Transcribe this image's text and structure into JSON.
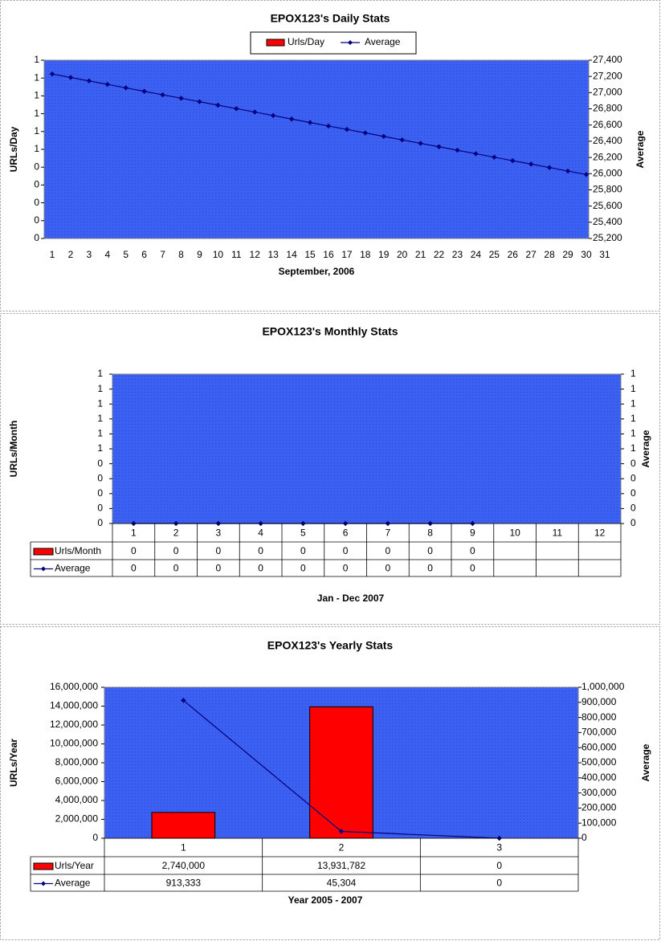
{
  "chart_data": [
    {
      "type": "combo",
      "title": "EPOX123's Daily Stats",
      "x_label": "September, 2006",
      "y_label": "URLs/Day",
      "y2_label": "Average",
      "categories": [
        "1",
        "2",
        "3",
        "4",
        "5",
        "6",
        "7",
        "8",
        "9",
        "10",
        "11",
        "12",
        "13",
        "14",
        "15",
        "16",
        "17",
        "18",
        "19",
        "20",
        "21",
        "22",
        "23",
        "24",
        "25",
        "26",
        "27",
        "28",
        "29",
        "30",
        "31"
      ],
      "series": [
        {
          "name": "Urls/Day",
          "type": "bar",
          "color": "#ff0000",
          "axis": "y",
          "values": [
            0,
            0,
            0,
            0,
            0,
            0,
            0,
            0,
            0,
            0,
            0,
            0,
            0,
            0,
            0,
            0,
            0,
            0,
            0,
            0,
            0,
            0,
            0,
            0,
            0,
            0,
            0,
            0,
            0,
            0,
            null
          ]
        },
        {
          "name": "Average",
          "type": "line",
          "color": "#000080",
          "axis": "y2",
          "values": [
            27230,
            27187,
            27145,
            27102,
            27059,
            27016,
            26973,
            26931,
            26888,
            26845,
            26802,
            26760,
            26717,
            26674,
            26631,
            26588,
            26546,
            26503,
            26460,
            26417,
            26374,
            26332,
            26289,
            26246,
            26203,
            26160,
            26118,
            26075,
            26032,
            25990,
            null
          ]
        }
      ],
      "ylim": [
        0,
        1
      ],
      "yticks": [
        0,
        {
          "value": 0.1,
          "label": "0"
        },
        {
          "value": 0.2,
          "label": "0"
        },
        {
          "value": 0.3,
          "label": "0"
        },
        {
          "value": 0.4,
          "label": "0"
        },
        {
          "value": 0.5,
          "label": "1"
        },
        {
          "value": 0.6,
          "label": "1"
        },
        {
          "value": 0.7,
          "label": "1"
        },
        {
          "value": 0.8,
          "label": "1"
        },
        {
          "value": 0.9,
          "label": "1"
        },
        1
      ],
      "y2lim": [
        25200,
        27400
      ],
      "y2ticks": [
        {
          "value": 25200,
          "label": "25,200"
        },
        {
          "value": 25400,
          "label": "25,400"
        },
        {
          "value": 25600,
          "label": "25,600"
        },
        {
          "value": 25800,
          "label": "25,800"
        },
        {
          "value": 26000,
          "label": "26,000"
        },
        {
          "value": 26200,
          "label": "26,200"
        },
        {
          "value": 26400,
          "label": "26,400"
        },
        {
          "value": 26600,
          "label": "26,600"
        },
        {
          "value": 26800,
          "label": "26,800"
        },
        {
          "value": 27000,
          "label": "27,000"
        },
        {
          "value": 27200,
          "label": "27,200"
        },
        {
          "value": 27400,
          "label": "27,400"
        }
      ],
      "legend": "top",
      "plot_color": "#3b60f2"
    },
    {
      "type": "combo",
      "title": "EPOX123's Monthly Stats",
      "x_label": "Jan - Dec 2007",
      "y_label": "URLs/Month",
      "y2_label": "Average",
      "categories": [
        "1",
        "2",
        "3",
        "4",
        "5",
        "6",
        "7",
        "8",
        "9",
        "10",
        "11",
        "12"
      ],
      "series": [
        {
          "name": "Urls/Month",
          "type": "bar",
          "color": "#ff0000",
          "axis": "y",
          "values": [
            0,
            0,
            0,
            0,
            0,
            0,
            0,
            0,
            0,
            null,
            null,
            null
          ]
        },
        {
          "name": "Average",
          "type": "line",
          "color": "#000080",
          "axis": "y2",
          "values": [
            0,
            0,
            0,
            0,
            0,
            0,
            0,
            0,
            0,
            null,
            null,
            null
          ]
        }
      ],
      "ylim": [
        0,
        1
      ],
      "yticks": [
        0,
        {
          "value": 0.1,
          "label": "0"
        },
        {
          "value": 0.2,
          "label": "0"
        },
        {
          "value": 0.3,
          "label": "0"
        },
        {
          "value": 0.4,
          "label": "0"
        },
        {
          "value": 0.5,
          "label": "1"
        },
        {
          "value": 0.6,
          "label": "1"
        },
        {
          "value": 0.7,
          "label": "1"
        },
        {
          "value": 0.8,
          "label": "1"
        },
        {
          "value": 0.9,
          "label": "1"
        },
        1
      ],
      "y2lim": [
        0,
        1
      ],
      "y2ticks": [
        0,
        {
          "value": 0.1,
          "label": "0"
        },
        {
          "value": 0.2,
          "label": "0"
        },
        {
          "value": 0.3,
          "label": "0"
        },
        {
          "value": 0.4,
          "label": "0"
        },
        {
          "value": 0.5,
          "label": "1"
        },
        {
          "value": 0.6,
          "label": "1"
        },
        {
          "value": 0.7,
          "label": "1"
        },
        {
          "value": 0.8,
          "label": "1"
        },
        {
          "value": 0.9,
          "label": "1"
        },
        1
      ],
      "legend": "data_table",
      "plot_color": "#3b60f2"
    },
    {
      "type": "combo",
      "title": "EPOX123's Yearly Stats",
      "x_label": "Year 2005 - 2007",
      "y_label": "URLs/Year",
      "y2_label": "Average",
      "categories": [
        "1",
        "2",
        "3"
      ],
      "series": [
        {
          "name": "Urls/Year",
          "type": "bar",
          "color": "#ff0000",
          "axis": "y",
          "values": [
            2740000,
            13931782,
            0
          ],
          "value_labels": [
            "2,740,000",
            "13,931,782",
            "0"
          ]
        },
        {
          "name": "Average",
          "type": "line",
          "color": "#000080",
          "axis": "y2",
          "values": [
            913333,
            45304,
            0
          ],
          "value_labels": [
            "913,333",
            "45,304",
            "0"
          ]
        }
      ],
      "ylim": [
        0,
        16000000
      ],
      "yticks": [
        0,
        {
          "value": 2000000,
          "label": "2,000,000"
        },
        {
          "value": 4000000,
          "label": "4,000,000"
        },
        {
          "value": 6000000,
          "label": "6,000,000"
        },
        {
          "value": 8000000,
          "label": "8,000,000"
        },
        {
          "value": 10000000,
          "label": "10,000,000"
        },
        {
          "value": 12000000,
          "label": "12,000,000"
        },
        {
          "value": 14000000,
          "label": "14,000,000"
        },
        {
          "value": 16000000,
          "label": "16,000,000"
        }
      ],
      "y2lim": [
        0,
        1000000
      ],
      "y2ticks": [
        0,
        {
          "value": 100000,
          "label": "100,000"
        },
        {
          "value": 200000,
          "label": "200,000"
        },
        {
          "value": 300000,
          "label": "300,000"
        },
        {
          "value": 400000,
          "label": "400,000"
        },
        {
          "value": 500000,
          "label": "500,000"
        },
        {
          "value": 600000,
          "label": "600,000"
        },
        {
          "value": 700000,
          "label": "700,000"
        },
        {
          "value": 800000,
          "label": "800,000"
        },
        {
          "value": 900000,
          "label": "900,000"
        },
        {
          "value": 1000000,
          "label": "1,000,000"
        }
      ],
      "legend": "data_table",
      "plot_color": "#3b60f2"
    }
  ]
}
